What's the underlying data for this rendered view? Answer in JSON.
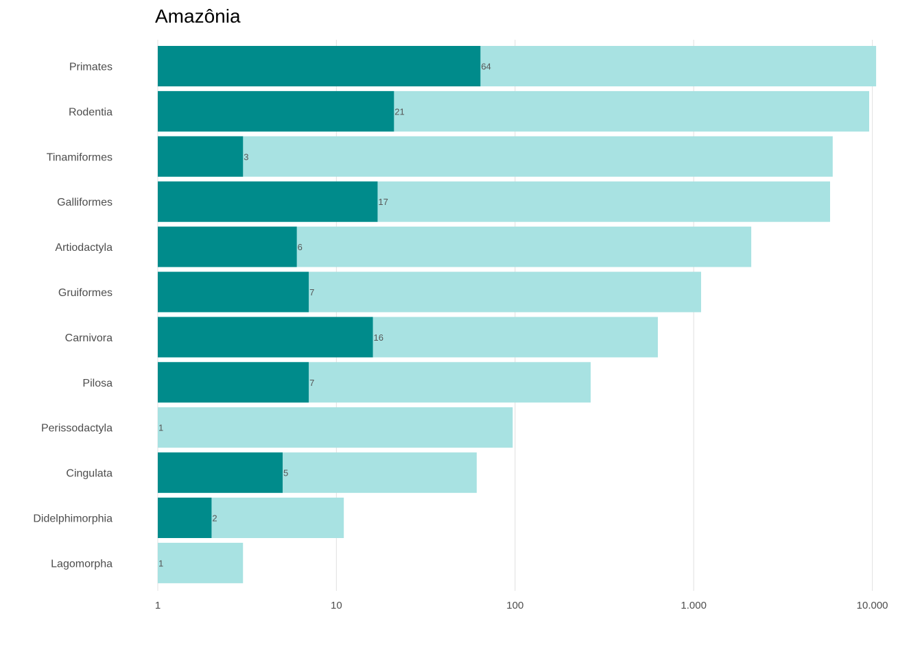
{
  "chart_data": {
    "type": "bar",
    "orientation": "horizontal",
    "title": "Amazônia",
    "xlabel": "",
    "ylabel": "",
    "x_scale": "log10",
    "xlim": [
      1,
      10500
    ],
    "x_ticks": [
      1,
      10,
      100,
      1000,
      10000
    ],
    "x_tick_labels": [
      "1",
      "10",
      "100",
      "1.000",
      "10.000"
    ],
    "grid": "vertical major",
    "legend": "none",
    "categories": [
      "Primates",
      "Rodentia",
      "Tinamiformes",
      "Galliformes",
      "Artiodactyla",
      "Gruiformes",
      "Carnivora",
      "Pilosa",
      "Perissodactyla",
      "Cingulata",
      "Didelphimorphia",
      "Lagomorpha"
    ],
    "series": [
      {
        "values": [
          10500,
          9600,
          6000,
          5800,
          2100,
          1100,
          630,
          265,
          97,
          61,
          11,
          3
        ],
        "color": "#a8e2e2"
      },
      {
        "values": [
          64,
          21,
          3,
          17,
          6,
          7,
          16,
          7,
          1,
          5,
          2,
          1
        ],
        "color": "#008b8b",
        "data_labels": [
          "64",
          "21",
          "3",
          "17",
          "6",
          "7",
          "16",
          "7",
          "1",
          "5",
          "2",
          "1"
        ]
      }
    ]
  }
}
